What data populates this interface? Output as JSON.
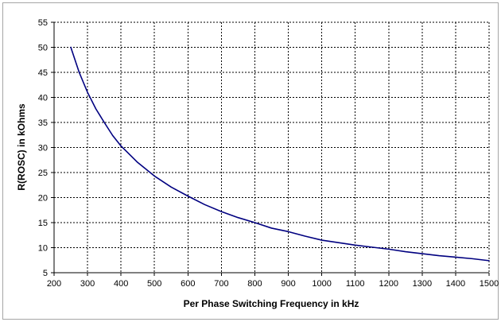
{
  "chart_data": {
    "type": "line",
    "title": "",
    "xlabel": "Per Phase Switching Frequency in kHz",
    "ylabel": "R(ROSC) in kOhms",
    "xlim": [
      200,
      1500
    ],
    "ylim": [
      5,
      55
    ],
    "xticks": [
      200,
      300,
      400,
      500,
      600,
      700,
      800,
      900,
      1000,
      1100,
      1200,
      1300,
      1400,
      1500
    ],
    "yticks": [
      5,
      10,
      15,
      20,
      25,
      30,
      35,
      40,
      45,
      50,
      55
    ],
    "grid": "dashed",
    "legend": "none",
    "colors": {
      "series": "#000080",
      "grid": "#000000",
      "axis": "#000000",
      "frame": "#a6a6a6"
    },
    "series": [
      {
        "x": [
          250,
          275,
          300,
          325,
          350,
          375,
          400,
          450,
          500,
          550,
          600,
          650,
          700,
          750,
          800,
          850,
          900,
          950,
          1000,
          1050,
          1100,
          1150,
          1200,
          1250,
          1300,
          1350,
          1400,
          1450,
          1500
        ],
        "values": [
          50.0,
          45.0,
          41.0,
          37.7,
          35.0,
          32.4,
          30.3,
          27.0,
          24.3,
          22.1,
          20.3,
          18.6,
          17.2,
          16.0,
          15.0,
          13.9,
          13.2,
          12.3,
          11.5,
          11.0,
          10.5,
          10.1,
          9.7,
          9.2,
          8.8,
          8.4,
          8.1,
          7.8,
          7.4
        ]
      }
    ]
  }
}
